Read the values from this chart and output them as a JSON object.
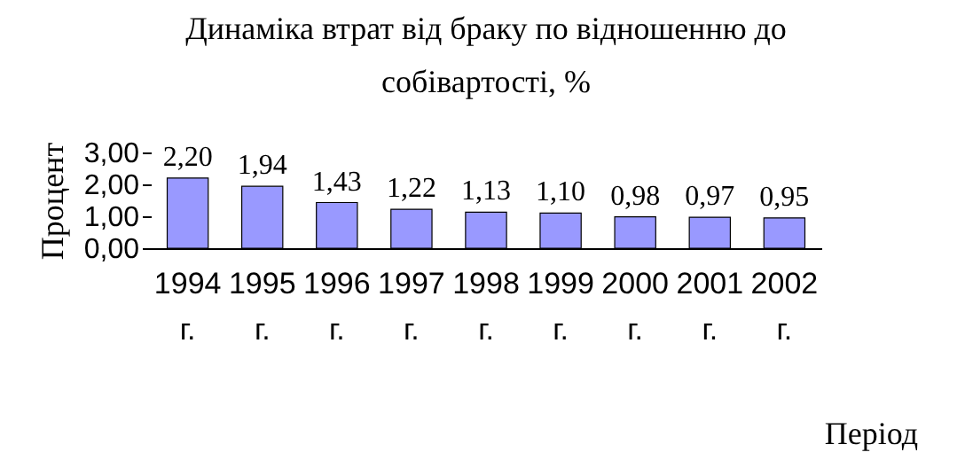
{
  "chart_data": {
    "type": "bar",
    "title": [
      "Динаміка втрат від браку по відношенню до",
      "собівартості, %"
    ],
    "categories": [
      "1994 г.",
      "1995 г.",
      "1996 г.",
      "1997 г.",
      "1998 г.",
      "1999 г.",
      "2000 г.",
      "2001 г.",
      "2002 г."
    ],
    "values": [
      2.2,
      1.94,
      1.43,
      1.22,
      1.13,
      1.1,
      0.98,
      0.97,
      0.95
    ],
    "value_labels": [
      "2,20",
      "1,94",
      "1,43",
      "1,22",
      "1,13",
      "1,10",
      "0,98",
      "0,97",
      "0,95"
    ],
    "color": "#9999ff",
    "ylabel": "Процент",
    "xlabel": "Період",
    "ylim": [
      0,
      3
    ],
    "yticks": [
      {
        "value": 0,
        "label": "0,00"
      },
      {
        "value": 1,
        "label": "1,00"
      },
      {
        "value": 2,
        "label": "2,00"
      },
      {
        "value": 3,
        "label": "3,00"
      }
    ],
    "grid": false
  }
}
